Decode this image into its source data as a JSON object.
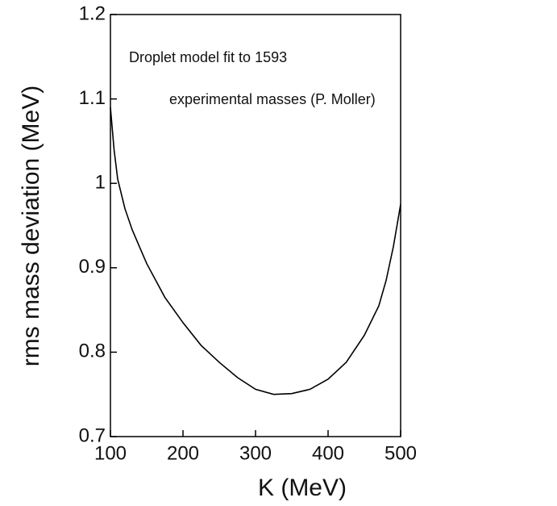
{
  "chart_data": {
    "type": "line",
    "xlabel": "K (MeV)",
    "ylabel": "rms mass deviation (MeV)",
    "annotations": [
      "Droplet model fit to 1593",
      "experimental masses (P. Moller)"
    ],
    "x": [
      100,
      105,
      110,
      120,
      130,
      140,
      150,
      175,
      200,
      225,
      250,
      275,
      300,
      325,
      350,
      375,
      400,
      425,
      450,
      470,
      480,
      490,
      500
    ],
    "series": [
      {
        "color": "#000000",
        "values": [
          1.09,
          1.04,
          1.005,
          0.97,
          0.945,
          0.925,
          0.905,
          0.865,
          0.835,
          0.808,
          0.788,
          0.77,
          0.756,
          0.75,
          0.751,
          0.756,
          0.768,
          0.788,
          0.82,
          0.855,
          0.885,
          0.925,
          0.975
        ]
      }
    ],
    "xlim": [
      100,
      500
    ],
    "xticks": [
      100,
      200,
      300,
      400,
      500
    ],
    "ylim": [
      0.7,
      1.2
    ],
    "yticks": [
      0.7,
      0.8,
      0.9,
      1,
      1.1,
      1.2
    ]
  }
}
